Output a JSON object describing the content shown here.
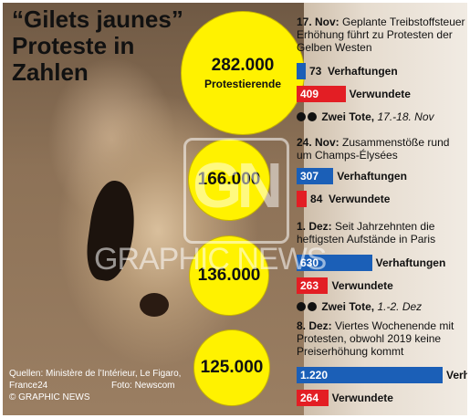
{
  "title": "“Gilets jaunes” Proteste in Zahlen",
  "source": "Quellen: Ministère de l’Intérieur, Le Figaro, France24",
  "photo_credit": "Foto: Newscom",
  "copyright": "© GRAPHIC NEWS",
  "watermark": "GRAPHIC NEWS",
  "colors": {
    "protesters": "#fff200",
    "arrests": "#1b5fb7",
    "injured": "#e31e24"
  },
  "chart_data": [
    {
      "type": "bubble",
      "categories": [
        "17. Nov",
        "24. Nov",
        "1. Dez",
        "8. Dez"
      ],
      "values": [
        282000,
        166000,
        136000,
        125000
      ],
      "value_labels": [
        "282.000",
        "166.000",
        "136.000",
        "125.000"
      ],
      "unit_label": "Protestierende"
    },
    {
      "type": "bar",
      "orientation": "horizontal",
      "categories": [
        "17. Nov",
        "24. Nov",
        "1. Dez",
        "8. Dez"
      ],
      "series": [
        {
          "name": "Verhaftungen",
          "values": [
            73,
            307,
            630,
            1220
          ],
          "labels": [
            "73",
            "307",
            "630",
            "1.220"
          ]
        },
        {
          "name": "Verwundete",
          "values": [
            409,
            84,
            263,
            264
          ],
          "labels": [
            "409",
            "84",
            "263",
            "264"
          ]
        }
      ]
    }
  ],
  "events": [
    {
      "date": "17. Nov:",
      "text": "Geplante Treibstoffsteuer Erhöhung führt zu Protesten der Gelben Westen",
      "deaths_label": "Zwei Tote,",
      "deaths_date": "17.-18. Nov"
    },
    {
      "date": "24. Nov:",
      "text": "Zusammenstöße rund um Champs-Élysées"
    },
    {
      "date": "1. Dez:",
      "text": "Seit Jahrzehnten die heftigsten Aufstände in Paris",
      "deaths_label": "Zwei Tote,",
      "deaths_date": "1.-2. Dez"
    },
    {
      "date": "8. Dez:",
      "text": "Viertes Wochenende mit Protesten, obwohl 2019 keine Preiserhöhung kommt"
    }
  ]
}
